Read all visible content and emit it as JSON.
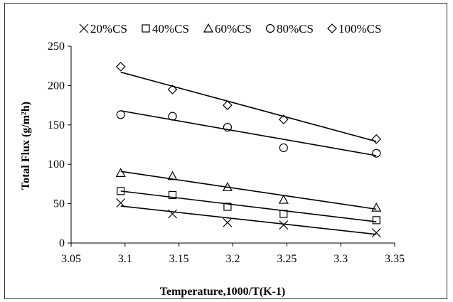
{
  "chart_data": {
    "type": "scatter",
    "xlabel": "Temperature,1000/T(K-1)",
    "ylabel": "Total Flux (g/m²h)",
    "xlim": [
      3.05,
      3.35
    ],
    "ylim": [
      0,
      250
    ],
    "xticks": [
      3.05,
      3.1,
      3.15,
      3.2,
      3.25,
      3.3,
      3.35
    ],
    "yticks": [
      0,
      50,
      100,
      150,
      200,
      250
    ],
    "xtick_labels": [
      "3.05",
      "3.1",
      "3.15",
      "3.2",
      "3.25",
      "3.3",
      "3.35"
    ],
    "ytick_labels": [
      "0",
      "50",
      "100",
      "150",
      "200",
      "250"
    ],
    "grid": false,
    "legend_position": "top",
    "x": [
      3.096,
      3.144,
      3.195,
      3.247,
      3.333
    ],
    "series": [
      {
        "name": "20%CS",
        "marker": "x",
        "values": [
          51,
          37,
          26,
          23,
          13
        ],
        "trend": [
          47,
          11
        ]
      },
      {
        "name": "40%CS",
        "marker": "square",
        "values": [
          66,
          61,
          46,
          37,
          29
        ],
        "trend": [
          66,
          27
        ]
      },
      {
        "name": "60%CS",
        "marker": "triangle",
        "values": [
          89,
          85,
          71,
          55,
          45
        ],
        "trend": [
          91,
          43
        ]
      },
      {
        "name": "80%CS",
        "marker": "circle",
        "values": [
          163,
          161,
          147,
          121,
          114
        ],
        "trend": [
          168,
          111
        ]
      },
      {
        "name": "100%CS",
        "marker": "diamond",
        "values": [
          224,
          195,
          175,
          157,
          132
        ],
        "trend": [
          217,
          129
        ]
      }
    ],
    "colors": {
      "marker": "#000000",
      "line": "#000000",
      "axis": "#000000"
    }
  }
}
